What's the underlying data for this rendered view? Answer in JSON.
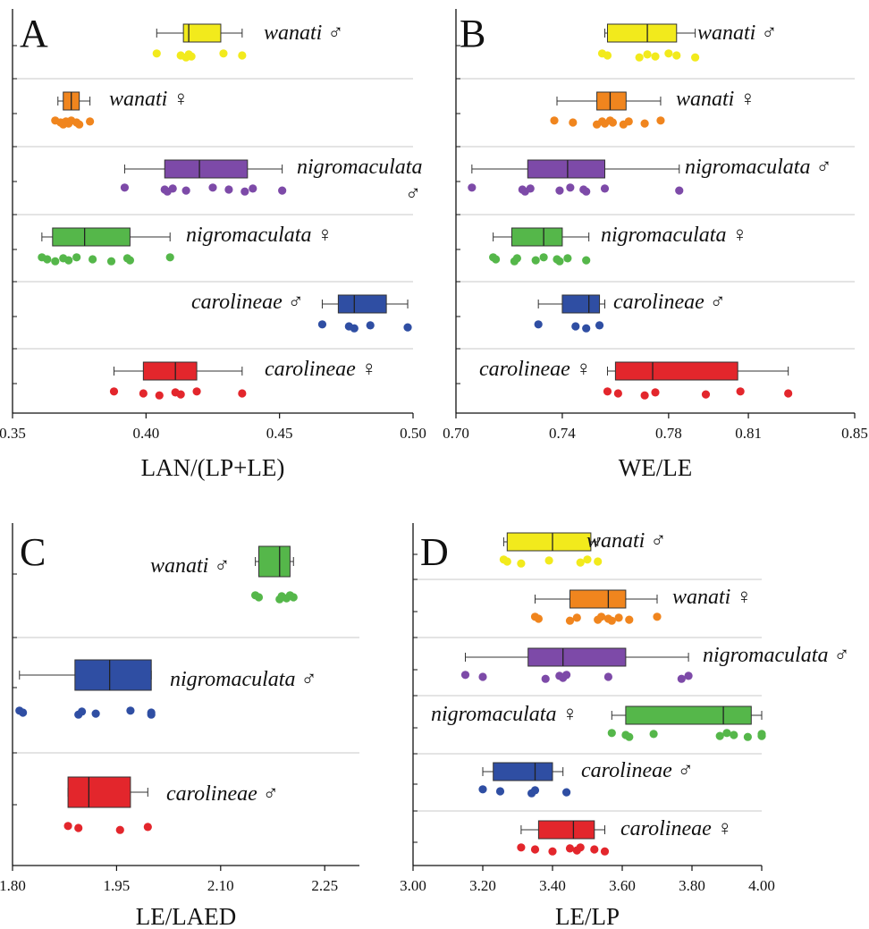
{
  "chart_data": [
    {
      "type": "boxplot",
      "panel": "A",
      "xlabel": "LAN/(LP+LE)",
      "xlim": [
        0.35,
        0.5
      ],
      "ticks": [
        0.35,
        0.4,
        0.45,
        0.5
      ],
      "tick_labels": [
        "0.35",
        "0.40",
        "0.45",
        "0.50"
      ],
      "groups": [
        {
          "label": "wanati ♂",
          "color": "#f2ea1c",
          "min": 0.404,
          "q1": 0.414,
          "median": 0.416,
          "q3": 0.428,
          "max": 0.436,
          "points": [
            0.404,
            0.413,
            0.415,
            0.416,
            0.417,
            0.429,
            0.436
          ]
        },
        {
          "label": "wanati ♀",
          "color": "#f0851e",
          "min": 0.367,
          "q1": 0.369,
          "median": 0.372,
          "q3": 0.375,
          "max": 0.379,
          "points": [
            0.366,
            0.368,
            0.369,
            0.37,
            0.371,
            0.372,
            0.374,
            0.375,
            0.379
          ]
        },
        {
          "label": "nigromaculata ♂",
          "color": "#7d4aa8",
          "min": 0.392,
          "q1": 0.407,
          "median": 0.42,
          "q3": 0.438,
          "max": 0.451,
          "points": [
            0.392,
            0.407,
            0.408,
            0.41,
            0.415,
            0.425,
            0.431,
            0.437,
            0.44,
            0.451
          ]
        },
        {
          "label": "nigromaculata ♀",
          "color": "#55b74a",
          "min": 0.361,
          "q1": 0.365,
          "median": 0.377,
          "q3": 0.394,
          "max": 0.409,
          "points": [
            0.361,
            0.363,
            0.366,
            0.369,
            0.371,
            0.374,
            0.38,
            0.387,
            0.393,
            0.394,
            0.409
          ]
        },
        {
          "label": "carolineae ♂",
          "color": "#2f4ea3",
          "min": 0.466,
          "q1": 0.472,
          "median": 0.478,
          "q3": 0.49,
          "max": 0.498,
          "points": [
            0.466,
            0.476,
            0.478,
            0.484,
            0.498
          ]
        },
        {
          "label": "carolineae ♀",
          "color": "#e3262c",
          "min": 0.388,
          "q1": 0.399,
          "median": 0.411,
          "q3": 0.419,
          "max": 0.436,
          "points": [
            0.388,
            0.399,
            0.405,
            0.411,
            0.413,
            0.419,
            0.436
          ]
        }
      ]
    },
    {
      "type": "boxplot",
      "panel": "B",
      "xlabel": "WE/LE",
      "xlim": [
        0.7,
        0.85
      ],
      "ticks": [
        0.7,
        0.74,
        0.78,
        0.81,
        0.85
      ],
      "tick_labels": [
        "0.70",
        "0.74",
        "0.78",
        "0.81",
        "0.85"
      ],
      "groups": [
        {
          "label": "wanati ♂",
          "color": "#f2ea1c",
          "min": 0.756,
          "q1": 0.757,
          "median": 0.772,
          "q3": 0.783,
          "max": 0.79,
          "points": [
            0.755,
            0.757,
            0.769,
            0.772,
            0.775,
            0.78,
            0.783,
            0.79
          ]
        },
        {
          "label": "wanati ♀",
          "color": "#f0851e",
          "min": 0.738,
          "q1": 0.753,
          "median": 0.758,
          "q3": 0.764,
          "max": 0.777,
          "points": [
            0.737,
            0.744,
            0.753,
            0.755,
            0.756,
            0.758,
            0.759,
            0.763,
            0.765,
            0.771,
            0.777
          ]
        },
        {
          "label": "nigromaculata ♂",
          "color": "#7d4aa8",
          "min": 0.706,
          "q1": 0.727,
          "median": 0.742,
          "q3": 0.756,
          "max": 0.784,
          "points": [
            0.706,
            0.725,
            0.726,
            0.728,
            0.739,
            0.743,
            0.748,
            0.749,
            0.756,
            0.784
          ]
        },
        {
          "label": "nigromaculata ♀",
          "color": "#55b74a",
          "min": 0.714,
          "q1": 0.721,
          "median": 0.733,
          "q3": 0.74,
          "max": 0.75,
          "points": [
            0.714,
            0.715,
            0.722,
            0.723,
            0.73,
            0.733,
            0.738,
            0.739,
            0.742,
            0.749
          ]
        },
        {
          "label": "carolineae ♂",
          "color": "#2f4ea3",
          "min": 0.731,
          "q1": 0.74,
          "median": 0.75,
          "q3": 0.754,
          "max": 0.756,
          "points": [
            0.731,
            0.745,
            0.749,
            0.754
          ]
        },
        {
          "label": "carolineae ♀",
          "color": "#e3262c",
          "min": 0.757,
          "q1": 0.76,
          "median": 0.774,
          "q3": 0.806,
          "max": 0.825,
          "points": [
            0.757,
            0.761,
            0.771,
            0.775,
            0.794,
            0.807,
            0.825
          ]
        }
      ]
    },
    {
      "type": "boxplot",
      "panel": "C",
      "xlabel": "LE/LAED",
      "xlim": [
        1.8,
        2.3
      ],
      "ticks": [
        1.8,
        1.95,
        2.1,
        2.25
      ],
      "tick_labels": [
        "1.80",
        "1.95",
        "2.10",
        "2.25"
      ],
      "groups": [
        {
          "label": "wanati ♂",
          "color": "#55b74a",
          "min": 2.15,
          "q1": 2.155,
          "median": 2.185,
          "q3": 2.2,
          "max": 2.205,
          "points": [
            2.15,
            2.155,
            2.185,
            2.188,
            2.195,
            2.2,
            2.205
          ]
        },
        {
          "label": "nigromaculata ♂",
          "color": "#2f4ea3",
          "min": 1.81,
          "q1": 1.89,
          "median": 1.94,
          "q3": 2.0,
          "max": 2.0,
          "points": [
            1.81,
            1.815,
            1.895,
            1.9,
            1.92,
            1.97,
            2.0,
            2.0
          ]
        },
        {
          "label": "carolineae ♂",
          "color": "#e3262c",
          "min": 1.88,
          "q1": 1.88,
          "median": 1.91,
          "q3": 1.97,
          "max": 1.995,
          "points": [
            1.88,
            1.895,
            1.955,
            1.995
          ]
        }
      ]
    },
    {
      "type": "boxplot",
      "panel": "D",
      "xlabel": "LE/LP",
      "xlim": [
        3.0,
        4.0
      ],
      "ticks": [
        3.0,
        3.2,
        3.4,
        3.6,
        3.8,
        4.0
      ],
      "tick_labels": [
        "3.00",
        "3.20",
        "3.40",
        "3.60",
        "3.80",
        "4.00"
      ],
      "groups": [
        {
          "label": "wanati ♂",
          "color": "#f2ea1c",
          "min": 3.26,
          "q1": 3.27,
          "median": 3.4,
          "q3": 3.51,
          "max": 3.53,
          "points": [
            3.26,
            3.27,
            3.31,
            3.39,
            3.48,
            3.5,
            3.53
          ]
        },
        {
          "label": "wanati ♀",
          "color": "#f0851e",
          "min": 3.35,
          "q1": 3.45,
          "median": 3.56,
          "q3": 3.61,
          "max": 3.7,
          "points": [
            3.35,
            3.36,
            3.45,
            3.47,
            3.53,
            3.54,
            3.56,
            3.57,
            3.59,
            3.62,
            3.7
          ]
        },
        {
          "label": "nigromaculata ♂",
          "color": "#7d4aa8",
          "min": 3.15,
          "q1": 3.33,
          "median": 3.43,
          "q3": 3.61,
          "max": 3.79,
          "points": [
            3.15,
            3.2,
            3.38,
            3.42,
            3.43,
            3.44,
            3.56,
            3.77,
            3.79
          ]
        },
        {
          "label": "nigromaculata ♀",
          "color": "#55b74a",
          "min": 3.57,
          "q1": 3.61,
          "median": 3.89,
          "q3": 3.97,
          "max": 4.0,
          "points": [
            3.57,
            3.61,
            3.62,
            3.69,
            3.88,
            3.9,
            3.92,
            3.96,
            4.0,
            4.0
          ]
        },
        {
          "label": "carolineae ♂",
          "color": "#2f4ea3",
          "min": 3.2,
          "q1": 3.23,
          "median": 3.35,
          "q3": 3.4,
          "max": 3.43,
          "points": [
            3.2,
            3.25,
            3.34,
            3.35,
            3.44
          ]
        },
        {
          "label": "carolineae ♀",
          "color": "#e3262c",
          "min": 3.31,
          "q1": 3.36,
          "median": 3.46,
          "q3": 3.52,
          "max": 3.55,
          "points": [
            3.31,
            3.35,
            3.4,
            3.45,
            3.47,
            3.48,
            3.52,
            3.55
          ]
        }
      ]
    }
  ]
}
